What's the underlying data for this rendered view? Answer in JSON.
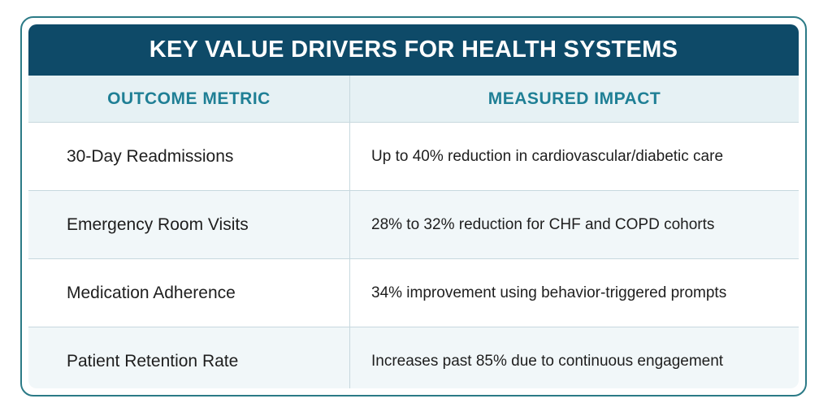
{
  "title": "KEY VALUE DRIVERS FOR HEALTH SYSTEMS",
  "headers": [
    "OUTCOME METRIC",
    "MEASURED IMPACT"
  ],
  "rows": [
    {
      "metric": "30-Day Readmissions",
      "impact": "Up to 40% reduction in cardiovascular/diabetic care"
    },
    {
      "metric": "Emergency Room Visits",
      "impact": "28% to 32% reduction for CHF and COPD cohorts"
    },
    {
      "metric": "Medication Adherence",
      "impact": "34% improvement using behavior-triggered prompts"
    },
    {
      "metric": "Patient Retention Rate",
      "impact": "Increases past 85% due to continuous engagement"
    }
  ],
  "colors": {
    "title_bg": "#0e4a68",
    "header_text": "#1f7f95",
    "border": "#2b7a86"
  }
}
